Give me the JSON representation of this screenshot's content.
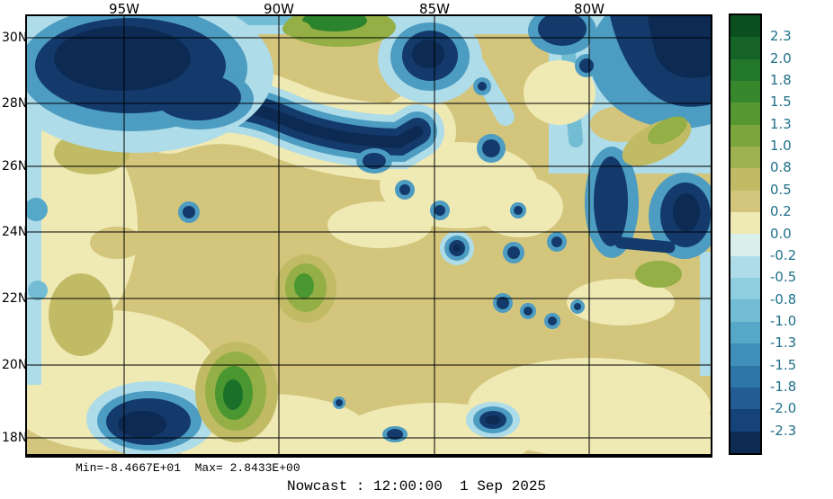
{
  "figure": {
    "caption": "Nowcast : 12:00:00  1 Sep 2025",
    "stats_line": "Min=-8.4667E+01  Max= 2.8433E+00"
  },
  "axes": {
    "lon_ticks": [
      "95W",
      "90W",
      "85W",
      "80W"
    ],
    "lat_ticks": [
      "30N",
      "28N",
      "26N",
      "24N",
      "22N",
      "20N",
      "18N"
    ]
  },
  "colorbar": {
    "tick_labels": [
      "2.3",
      "2.0",
      "1.8",
      "1.5",
      "1.3",
      "1.0",
      "0.8",
      "0.5",
      "0.2",
      "0.0",
      "-0.2",
      "-0.5",
      "-0.8",
      "-1.0",
      "-1.3",
      "-1.5",
      "-1.8",
      "-2.0",
      "-2.3"
    ],
    "cell_colors": [
      "#0a4f1e",
      "#156327",
      "#22772b",
      "#37882d",
      "#579732",
      "#7ba63c",
      "#9db150",
      "#c2bb66",
      "#d3c57c",
      "#efe9b4",
      "#d9efec",
      "#aedce8",
      "#8fcede",
      "#72bcd4",
      "#56a8c8",
      "#3f8fba",
      "#2f76a8",
      "#225c92",
      "#16427a",
      "#0d2a52"
    ],
    "label_color": "#20708a"
  },
  "chart_data": {
    "type": "heatmap",
    "subtype": "filled contour field over geographic map (ocean nowcast)",
    "title": "Nowcast : 12:00:00  1 Sep 2025",
    "product": "Nowcast",
    "valid_time": "12:00:00  1 Sep 2025",
    "x_ticks": [
      "95W",
      "90W",
      "85W",
      "80W"
    ],
    "y_ticks": [
      "30N",
      "28N",
      "26N",
      "24N",
      "22N",
      "20N",
      "18N"
    ],
    "x_range_approx": [
      "98W",
      "76W"
    ],
    "y_range_approx": [
      "17.5N",
      "30.7N"
    ],
    "grid": true,
    "legend_position": "right-colorbar",
    "contour_levels": [
      2.3,
      2.0,
      1.8,
      1.5,
      1.3,
      1.0,
      0.8,
      0.5,
      0.2,
      0.0,
      -0.2,
      -0.5,
      -0.8,
      -1.0,
      -1.3,
      -1.5,
      -1.8,
      -2.0,
      -2.3
    ],
    "palette_top_to_bottom": [
      "#0a4f1e",
      "#156327",
      "#22772b",
      "#37882d",
      "#579732",
      "#7ba63c",
      "#9db150",
      "#c2bb66",
      "#d3c57c",
      "#efe9b4",
      "#d9efec",
      "#aedce8",
      "#8fcede",
      "#72bcd4",
      "#56a8c8",
      "#3f8fba",
      "#2f76a8",
      "#225c92",
      "#16427a",
      "#0d2a52"
    ],
    "field_min": -84.667,
    "field_max": 2.8433,
    "min_label": "Min=-8.4667E+01",
    "max_label": "Max= 2.8433E+00",
    "notable_features": [
      "large dark-navy negative eddy in northwest corner near 95-97W, 28-30N",
      "elongated dark-navy negative front snaking along ~27N from 93W to 86W",
      "isolated negative eddy near 85.5W 29.5N at top center",
      "strong negative band along the western Atlantic / Florida Straits near 78-80W",
      "cluster of small negative eddies in the central basin 24-26N, 82-86W",
      "scattered small negative dots near 21-22N, 80-82W and along 18N",
      "negative pocket near 94.5W 19.5N in the southwest",
      "green positive anomaly cell with dark core near 93W 19-20N",
      "green positive patch in Bay of Campeche near 92.5W 22N",
      "green positive strip along the northern Gulf coast near 91W 30N",
      "background field mostly +0.2 to +0.5 (tan) with pale-yellow 0.0-0.2 zones"
    ]
  }
}
